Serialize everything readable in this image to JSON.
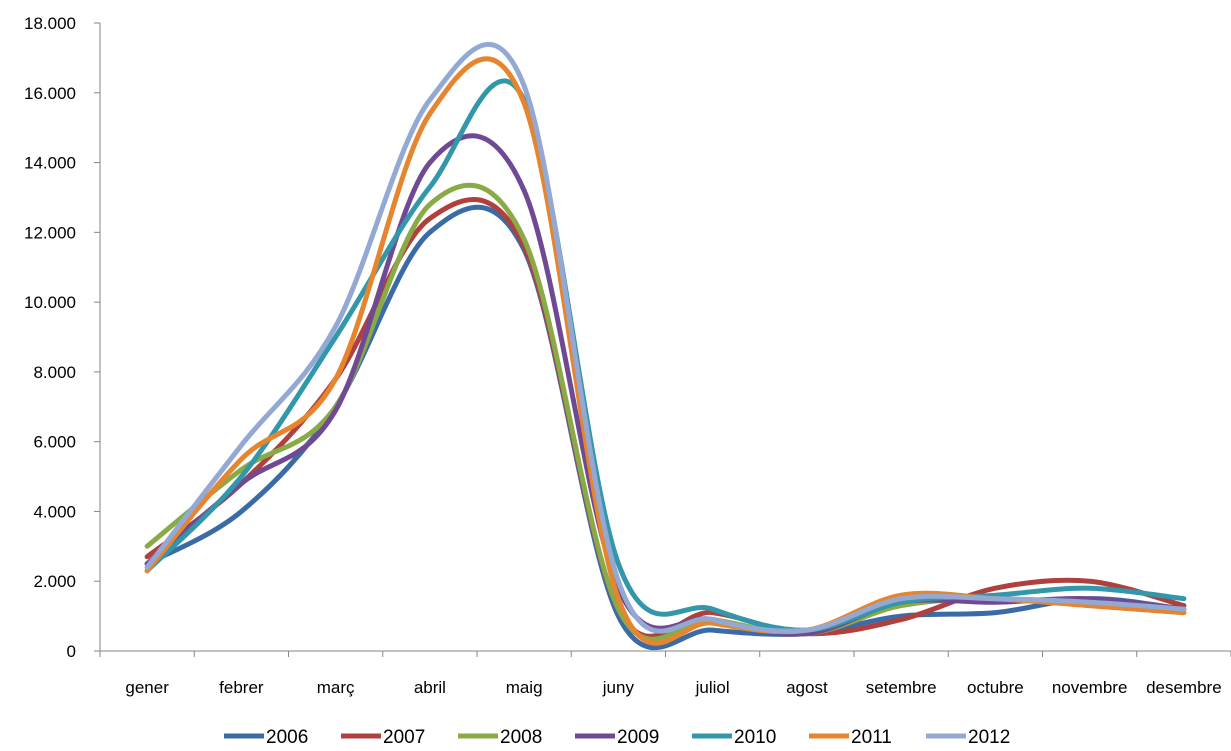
{
  "chart_data": {
    "type": "line",
    "title": "",
    "xlabel": "",
    "ylabel": "",
    "categories": [
      "gener",
      "febrer",
      "març",
      "abril",
      "maig",
      "juny",
      "juliol",
      "agost",
      "setembre",
      "octubre",
      "novembre",
      "desembre"
    ],
    "ylim": [
      0,
      18000
    ],
    "yticks": [
      0,
      2000,
      4000,
      6000,
      8000,
      10000,
      12000,
      14000,
      16000,
      18000
    ],
    "ytick_labels": [
      "0",
      "2.000",
      "4.000",
      "6.000",
      "8.000",
      "10.000",
      "12.000",
      "14.000",
      "16.000",
      "18.000"
    ],
    "grid": false,
    "smooth": true,
    "legend_position": "bottom",
    "series": [
      {
        "name": "2006",
        "color": "#3b6ba7",
        "values": [
          2500,
          4000,
          7000,
          12000,
          11500,
          1000,
          600,
          500,
          1000,
          1100,
          1500,
          1200
        ]
      },
      {
        "name": "2007",
        "color": "#b0403d",
        "values": [
          2700,
          4800,
          7800,
          12400,
          11600,
          1200,
          1100,
          500,
          900,
          1800,
          2000,
          1300
        ]
      },
      {
        "name": "2008",
        "color": "#8aaa47",
        "values": [
          3000,
          5200,
          7000,
          12800,
          11800,
          1200,
          900,
          500,
          1300,
          1500,
          1300,
          1100
        ]
      },
      {
        "name": "2009",
        "color": "#6f4a93",
        "values": [
          2500,
          4800,
          6900,
          14000,
          13200,
          1800,
          900,
          500,
          1400,
          1400,
          1500,
          1200
        ]
      },
      {
        "name": "2010",
        "color": "#3297aa",
        "values": [
          2300,
          5000,
          9000,
          13300,
          15800,
          2500,
          1200,
          600,
          1400,
          1600,
          1800,
          1500
        ]
      },
      {
        "name": "2011",
        "color": "#e6852d",
        "values": [
          2300,
          5500,
          7800,
          15400,
          15700,
          1500,
          800,
          600,
          1600,
          1500,
          1300,
          1100
        ]
      },
      {
        "name": "2012",
        "color": "#93a9d4",
        "values": [
          2400,
          5900,
          9300,
          15800,
          16200,
          2000,
          900,
          600,
          1500,
          1500,
          1400,
          1200
        ]
      }
    ]
  }
}
